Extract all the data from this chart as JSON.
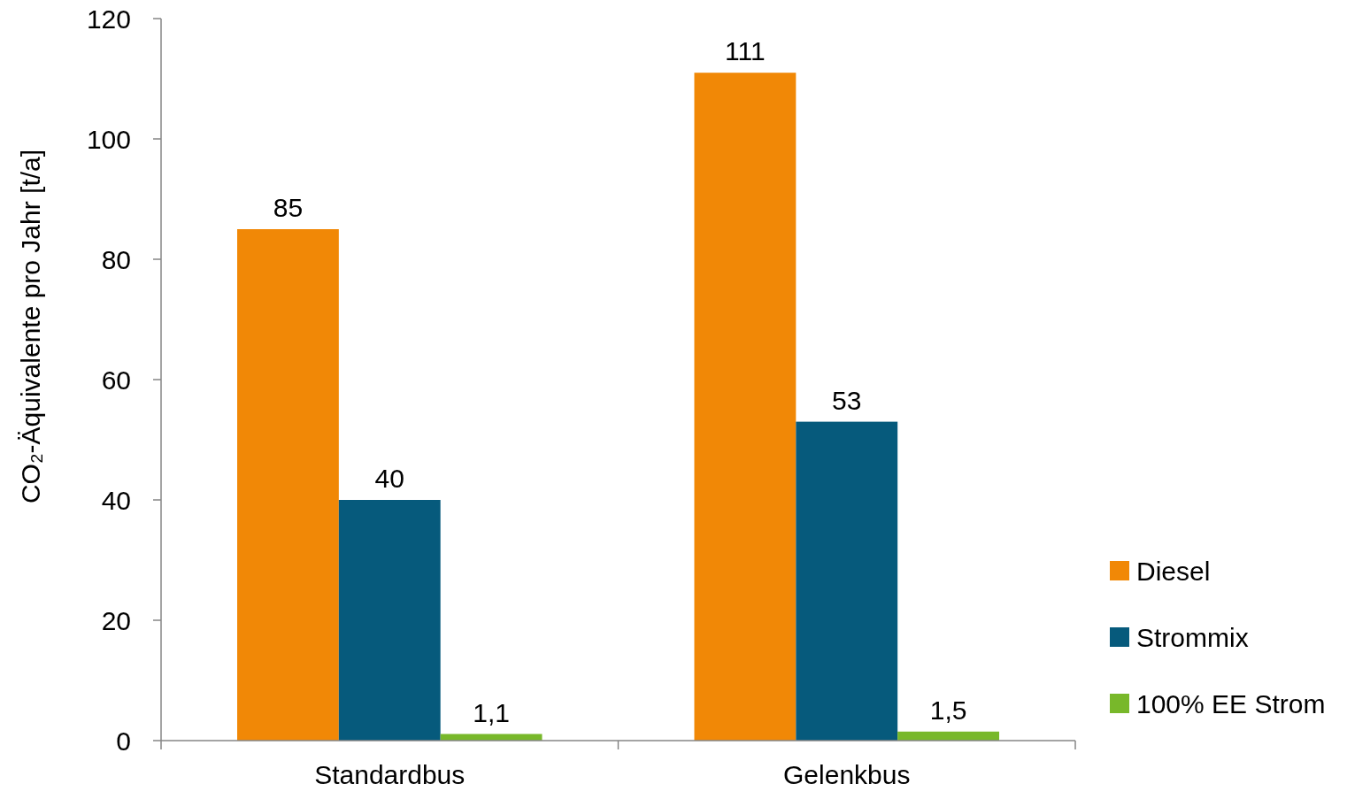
{
  "chart_data": {
    "type": "bar",
    "ylabel": "CO₂-Äquivalente pro Jahr [t/a]",
    "categories": [
      "Standardbus",
      "Gelenkbus"
    ],
    "series": [
      {
        "name": "Diesel",
        "color": "#f18806",
        "values": [
          85,
          111
        ],
        "value_labels": [
          "85",
          "111"
        ]
      },
      {
        "name": "Strommix",
        "color": "#065a7c",
        "values": [
          40,
          53
        ],
        "value_labels": [
          "40",
          "53"
        ]
      },
      {
        "name": "100% EE Strom",
        "color": "#78b82a",
        "values": [
          1.1,
          1.5
        ],
        "value_labels": [
          "1,1",
          "1,5"
        ]
      }
    ],
    "ylim": [
      0,
      120
    ],
    "yticks": [
      0,
      20,
      40,
      60,
      80,
      100,
      120
    ],
    "grid": false,
    "legend": "right"
  }
}
